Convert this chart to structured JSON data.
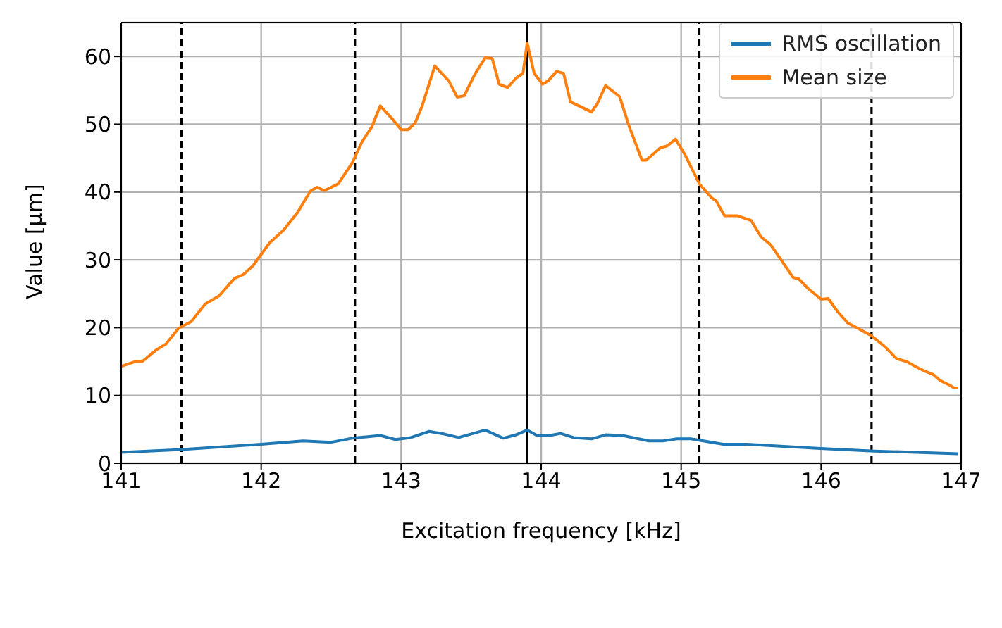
{
  "chart_data": {
    "type": "line",
    "xlabel": "Excitation frequency [kHz]",
    "ylabel": "Value [µm]",
    "xlim": [
      141,
      147
    ],
    "xticks": [
      141,
      142,
      143,
      144,
      145,
      146,
      147
    ],
    "ylim": [
      0,
      65
    ],
    "yticks": [
      0,
      10,
      20,
      30,
      40,
      50,
      60
    ],
    "grid": true,
    "legend": "top right",
    "marker": "none",
    "line_style": "solid",
    "series": [
      {
        "name": "RMS oscillation",
        "color": "#1f77b4",
        "x": [
          141,
          141.41,
          142,
          142.3,
          142.5,
          142.65,
          142.75,
          142.85,
          142.96,
          143.07,
          143.2,
          143.31,
          143.41,
          143.6,
          143.73,
          143.82,
          143.9,
          143.97,
          144.06,
          144.14,
          144.23,
          144.36,
          144.46,
          144.58,
          144.77,
          144.87,
          144.97,
          145.07,
          145.3,
          145.47,
          145.97,
          146.38,
          146.98
        ],
        "values": [
          1.6,
          2.0,
          2.8,
          3.3,
          3.1,
          3.7,
          3.9,
          4.1,
          3.5,
          3.8,
          4.7,
          4.3,
          3.8,
          4.9,
          3.7,
          4.2,
          4.9,
          4.1,
          4.1,
          4.4,
          3.8,
          3.6,
          4.2,
          4.1,
          3.3,
          3.3,
          3.6,
          3.6,
          2.8,
          2.8,
          2.2,
          1.8,
          1.4
        ]
      },
      {
        "name": "Mean size",
        "color": "#ff7f0e",
        "x": [
          141,
          141.1,
          141.15,
          141.25,
          141.32,
          141.41,
          141.5,
          141.6,
          141.7,
          141.81,
          141.87,
          141.94,
          142.06,
          142.16,
          142.26,
          142.35,
          142.4,
          142.45,
          142.55,
          142.65,
          142.72,
          142.79,
          142.85,
          142.94,
          143.0,
          143.05,
          143.1,
          143.15,
          143.24,
          143.34,
          143.4,
          143.45,
          143.53,
          143.6,
          143.65,
          143.7,
          143.76,
          143.82,
          143.87,
          143.9,
          143.95,
          144.01,
          144.05,
          144.11,
          144.16,
          144.21,
          144.28,
          144.36,
          144.4,
          144.46,
          144.56,
          144.63,
          144.72,
          144.75,
          144.85,
          144.9,
          144.96,
          145.03,
          145.13,
          145.22,
          145.25,
          145.31,
          145.4,
          145.5,
          145.57,
          145.64,
          145.7,
          145.8,
          145.84,
          145.91,
          146.0,
          146.05,
          146.12,
          146.19,
          146.28,
          146.36,
          146.46,
          146.54,
          146.61,
          146.68,
          146.75,
          146.8,
          146.85,
          146.92,
          146.95,
          146.98
        ],
        "values": [
          14.3,
          15.0,
          15.0,
          16.7,
          17.6,
          19.9,
          20.9,
          23.5,
          24.7,
          27.3,
          27.8,
          29.1,
          32.5,
          34.4,
          37.0,
          40.1,
          40.7,
          40.2,
          41.2,
          44.3,
          47.4,
          49.6,
          52.7,
          50.7,
          49.2,
          49.2,
          50.2,
          52.7,
          58.6,
          56.4,
          54.0,
          54.2,
          57.5,
          59.8,
          59.7,
          55.9,
          55.4,
          56.8,
          57.5,
          62.0,
          57.5,
          55.9,
          56.4,
          57.8,
          57.5,
          53.3,
          52.6,
          51.8,
          53.0,
          55.7,
          54.1,
          49.6,
          44.7,
          44.7,
          46.5,
          46.8,
          47.8,
          45.4,
          41.2,
          39.1,
          38.7,
          36.5,
          36.5,
          35.8,
          33.4,
          32.2,
          30.4,
          27.4,
          27.2,
          25.7,
          24.2,
          24.3,
          22.3,
          20.7,
          19.7,
          18.8,
          17.1,
          15.4,
          15.0,
          14.2,
          13.5,
          13.1,
          12.2,
          11.5,
          11.1,
          11.1
        ]
      }
    ],
    "ref_lines": [
      {
        "axis": "x",
        "value": 141.43,
        "line_style": "dashed",
        "color": "#000000"
      },
      {
        "axis": "x",
        "value": 142.67,
        "line_style": "dashed",
        "color": "#000000"
      },
      {
        "axis": "x",
        "value": 143.9,
        "line_style": "solid",
        "color": "#000000"
      },
      {
        "axis": "x",
        "value": 145.13,
        "line_style": "dashed",
        "color": "#000000"
      },
      {
        "axis": "x",
        "value": 146.36,
        "line_style": "dashed",
        "color": "#000000"
      }
    ]
  }
}
